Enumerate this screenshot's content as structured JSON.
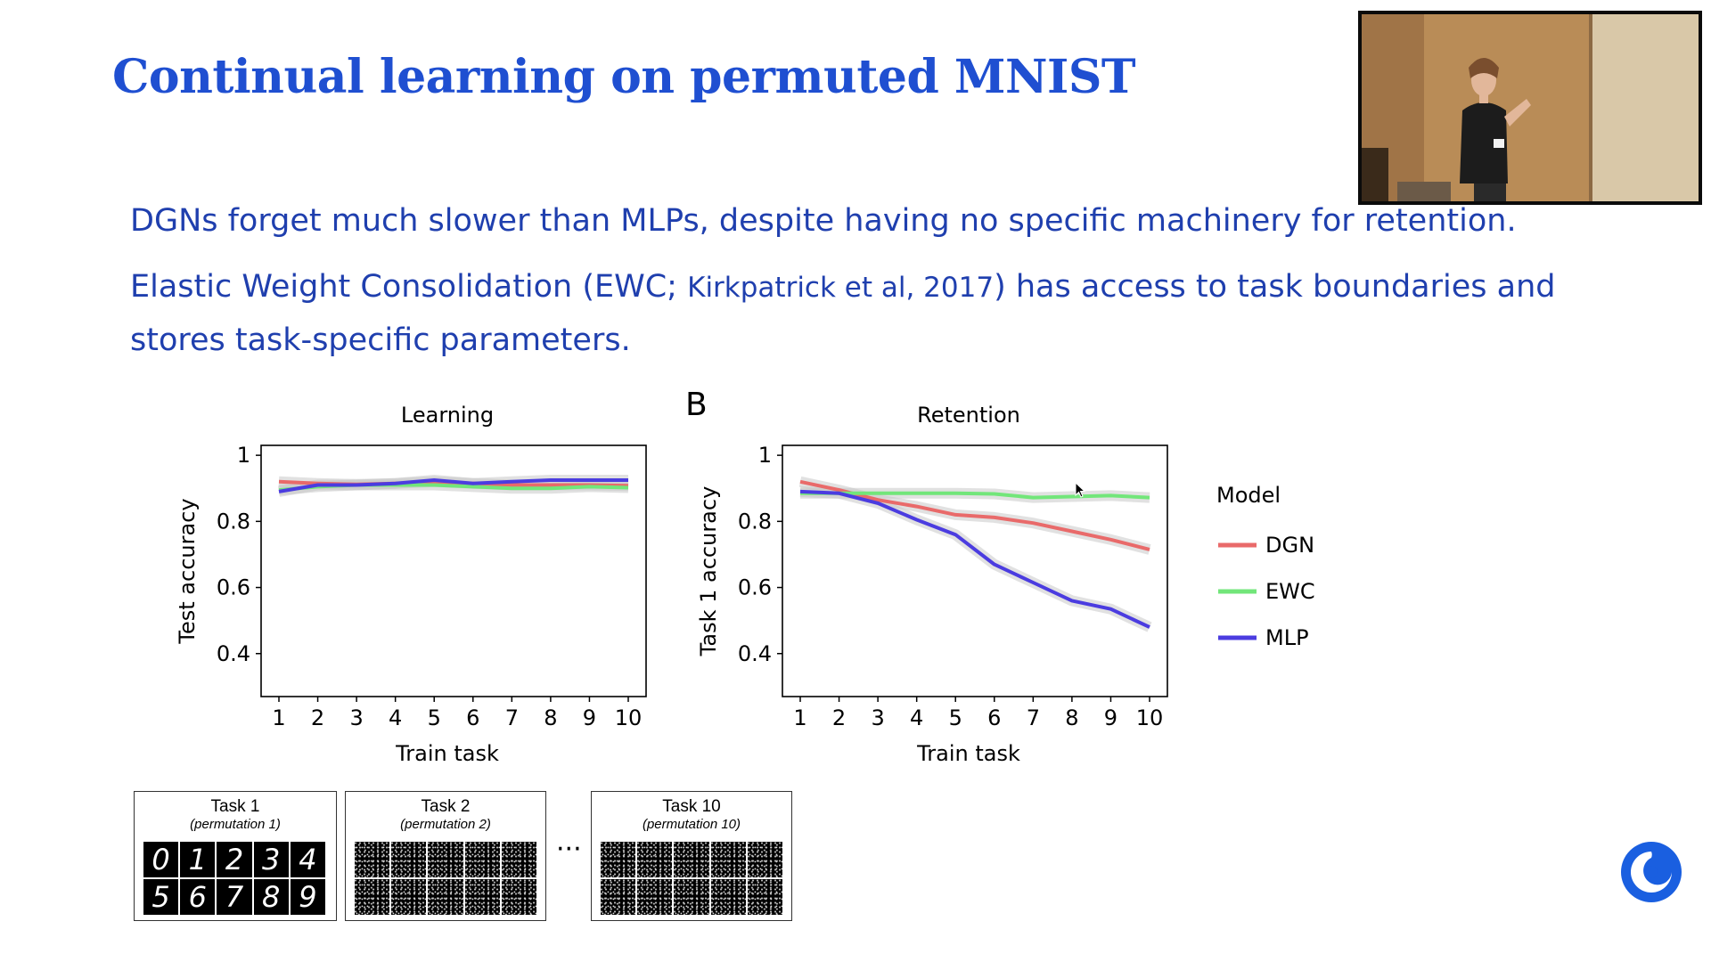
{
  "slide": {
    "title": "Continual learning on permuted MNIST",
    "bullet1": "DGNs forget much slower than MLPs, despite having no specific machinery for retention.",
    "bullet2_pre": "Elastic Weight Consolidation (EWC; ",
    "bullet2_cite": "Kirkpatrick et al, 2017",
    "bullet2_post": ") has access to task boundaries and",
    "bullet3": "stores task-specific parameters."
  },
  "panel_label": "B",
  "legend": {
    "title": "Model",
    "entries": [
      "DGN",
      "EWC",
      "MLP"
    ]
  },
  "colors": {
    "DGN": "#e96a6a",
    "EWC": "#72e67a",
    "MLP": "#4b3ce0",
    "title": "#1f4fd1",
    "text": "#1f3fae"
  },
  "chart_data": [
    {
      "type": "line",
      "title": "Learning",
      "xlabel": "Train task",
      "ylabel": "Test accuracy",
      "x": [
        1,
        2,
        3,
        4,
        5,
        6,
        7,
        8,
        9,
        10
      ],
      "xticks": [
        "1",
        "2",
        "3",
        "4",
        "5",
        "6",
        "7",
        "8",
        "9",
        "10"
      ],
      "yticks": [
        "0.4",
        "0.6",
        "0.8",
        "1"
      ],
      "ylim": [
        0.27,
        1.03
      ],
      "grid": false,
      "series": [
        {
          "name": "DGN",
          "values": [
            0.92,
            0.915,
            0.912,
            0.915,
            0.92,
            0.915,
            0.91,
            0.91,
            0.91,
            0.908
          ]
        },
        {
          "name": "EWC",
          "values": [
            0.895,
            0.905,
            0.91,
            0.91,
            0.91,
            0.905,
            0.9,
            0.9,
            0.905,
            0.902
          ]
        },
        {
          "name": "MLP",
          "values": [
            0.89,
            0.91,
            0.91,
            0.915,
            0.925,
            0.915,
            0.92,
            0.925,
            0.925,
            0.925
          ]
        }
      ]
    },
    {
      "type": "line",
      "title": "Retention",
      "xlabel": "Train task",
      "ylabel": "Task 1 accuracy",
      "x": [
        1,
        2,
        3,
        4,
        5,
        6,
        7,
        8,
        9,
        10
      ],
      "xticks": [
        "1",
        "2",
        "3",
        "4",
        "5",
        "6",
        "7",
        "8",
        "9",
        "10"
      ],
      "yticks": [
        "0.4",
        "0.6",
        "0.8",
        "1"
      ],
      "ylim": [
        0.27,
        1.03
      ],
      "grid": false,
      "series": [
        {
          "name": "DGN",
          "values": [
            0.92,
            0.895,
            0.865,
            0.845,
            0.82,
            0.812,
            0.795,
            0.77,
            0.745,
            0.715
          ]
        },
        {
          "name": "EWC",
          "values": [
            0.885,
            0.885,
            0.885,
            0.885,
            0.885,
            0.883,
            0.872,
            0.875,
            0.878,
            0.872
          ]
        },
        {
          "name": "MLP",
          "values": [
            0.89,
            0.885,
            0.855,
            0.805,
            0.76,
            0.67,
            0.615,
            0.56,
            0.535,
            0.48
          ]
        }
      ]
    }
  ],
  "tasks": [
    {
      "title": "Task 1",
      "subtitle": "(permutation 1)",
      "digits": [
        "0",
        "1",
        "2",
        "3",
        "4",
        "5",
        "6",
        "7",
        "8",
        "9"
      ]
    },
    {
      "title": "Task 2",
      "subtitle": "(permutation 2)"
    },
    {
      "title": "Task 10",
      "subtitle": "(permutation 10)"
    }
  ],
  "ellipsis": "···"
}
